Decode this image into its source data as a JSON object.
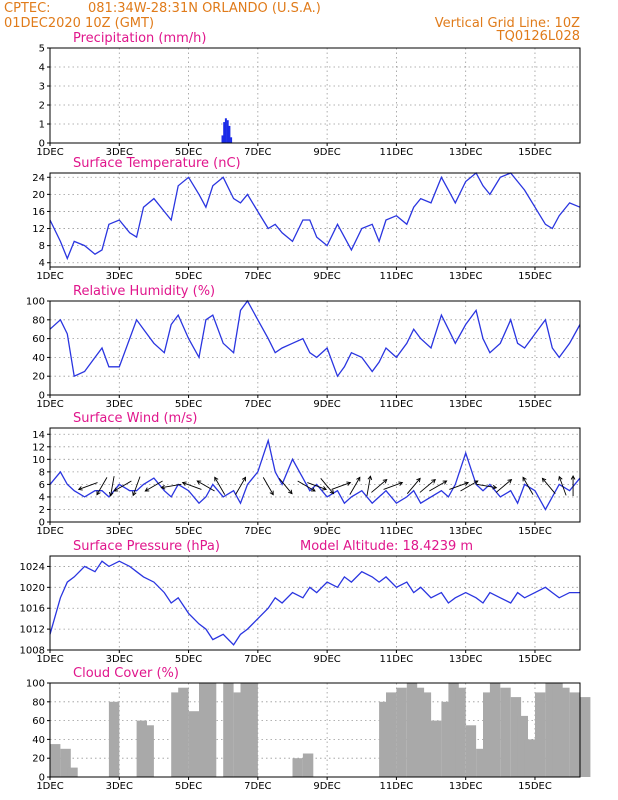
{
  "header": {
    "source": "CPTEC:",
    "location": "081:34W-28:31N   ORLANDO (U.S.A.)",
    "datetime": "01DEC2020 10Z (GMT)",
    "grid_note": "Vertical Grid Line: 10Z",
    "code": "TQ0126L028"
  },
  "colors": {
    "header": "#e07b1a",
    "panel_title": "#e0168c",
    "series": "#2a35e0",
    "precip": "#1b2be8",
    "cloud": "#a9a9a9"
  },
  "x_axis": {
    "ticks": [
      "1DEC",
      "3DEC",
      "5DEC",
      "7DEC",
      "9DEC",
      "11DEC",
      "13DEC",
      "15DEC"
    ],
    "tick_days": [
      0,
      2,
      4,
      6,
      8,
      10,
      12,
      14
    ],
    "xlim_days": [
      0,
      15.3
    ]
  },
  "chart_data": [
    {
      "type": "bar",
      "title": "Precipitation (mm/h)",
      "ylim": [
        0,
        5
      ],
      "yticks": [
        0,
        1,
        2,
        3,
        4,
        5
      ],
      "x": [
        4.95,
        5.0,
        5.05,
        5.1,
        5.15,
        5.2
      ],
      "values": [
        0.4,
        1.1,
        1.3,
        1.2,
        0.9,
        0.3
      ]
    },
    {
      "type": "line",
      "title": "Surface Temperature (nC)",
      "ylim": [
        3,
        25
      ],
      "yticks": [
        4,
        8,
        12,
        16,
        20,
        24
      ],
      "x": [
        0,
        0.3,
        0.5,
        0.7,
        1.0,
        1.3,
        1.5,
        1.7,
        2.0,
        2.3,
        2.5,
        2.7,
        3.0,
        3.3,
        3.5,
        3.7,
        4.0,
        4.3,
        4.5,
        4.7,
        5.0,
        5.3,
        5.5,
        5.7,
        6.0,
        6.3,
        6.5,
        6.7,
        7.0,
        7.3,
        7.5,
        7.7,
        8.0,
        8.3,
        8.5,
        8.7,
        9.0,
        9.3,
        9.5,
        9.7,
        10.0,
        10.3,
        10.5,
        10.7,
        11.0,
        11.3,
        11.5,
        11.7,
        12.0,
        12.3,
        12.5,
        12.7,
        13.0,
        13.3,
        13.5,
        13.7,
        14.0,
        14.3,
        14.5,
        14.7,
        15.0,
        15.3
      ],
      "values": [
        14,
        9,
        5,
        9,
        8,
        6,
        7,
        13,
        14,
        11,
        10,
        17,
        19,
        16,
        14,
        22,
        24,
        20,
        17,
        22,
        24,
        19,
        18,
        20,
        16,
        12,
        13,
        11,
        9,
        14,
        14,
        10,
        8,
        13,
        10,
        7,
        12,
        13,
        9,
        14,
        15,
        13,
        17,
        19,
        18,
        24,
        21,
        18,
        23,
        25,
        22,
        20,
        24,
        25,
        23,
        21,
        17,
        13,
        12,
        15,
        18,
        17
      ]
    },
    {
      "type": "line",
      "title": "Relative Humidity (%)",
      "ylim": [
        0,
        100
      ],
      "yticks": [
        0,
        20,
        40,
        60,
        80,
        100
      ],
      "x": [
        0,
        0.3,
        0.5,
        0.7,
        1.0,
        1.3,
        1.5,
        1.7,
        2.0,
        2.3,
        2.5,
        2.7,
        3.0,
        3.3,
        3.5,
        3.7,
        4.0,
        4.3,
        4.5,
        4.7,
        5.0,
        5.3,
        5.5,
        5.7,
        6.0,
        6.3,
        6.5,
        6.7,
        7.0,
        7.3,
        7.5,
        7.7,
        8.0,
        8.3,
        8.5,
        8.7,
        9.0,
        9.3,
        9.5,
        9.7,
        10.0,
        10.3,
        10.5,
        10.7,
        11.0,
        11.3,
        11.5,
        11.7,
        12.0,
        12.3,
        12.5,
        12.7,
        13.0,
        13.3,
        13.5,
        13.7,
        14.0,
        14.3,
        14.5,
        14.7,
        15.0,
        15.3
      ],
      "values": [
        70,
        80,
        65,
        20,
        25,
        40,
        50,
        30,
        30,
        60,
        80,
        70,
        55,
        45,
        75,
        85,
        60,
        40,
        80,
        85,
        55,
        45,
        90,
        100,
        80,
        60,
        45,
        50,
        55,
        60,
        45,
        40,
        50,
        20,
        30,
        45,
        40,
        25,
        35,
        50,
        40,
        55,
        70,
        60,
        50,
        85,
        70,
        55,
        75,
        90,
        60,
        45,
        55,
        80,
        55,
        50,
        65,
        80,
        50,
        40,
        55,
        75
      ]
    },
    {
      "type": "line",
      "title": "Surface Wind (m/s)",
      "ylim": [
        0,
        15
      ],
      "yticks": [
        0,
        2,
        4,
        6,
        8,
        10,
        12,
        14
      ],
      "x": [
        0,
        0.3,
        0.5,
        0.7,
        1.0,
        1.3,
        1.5,
        1.7,
        2.0,
        2.3,
        2.5,
        2.7,
        3.0,
        3.3,
        3.5,
        3.7,
        4.0,
        4.3,
        4.5,
        4.7,
        5.0,
        5.3,
        5.5,
        5.7,
        6.0,
        6.3,
        6.5,
        6.7,
        7.0,
        7.3,
        7.5,
        7.7,
        8.0,
        8.3,
        8.5,
        8.7,
        9.0,
        9.3,
        9.5,
        9.7,
        10.0,
        10.3,
        10.5,
        10.7,
        11.0,
        11.3,
        11.5,
        11.7,
        12.0,
        12.3,
        12.5,
        12.7,
        13.0,
        13.3,
        13.5,
        13.7,
        14.0,
        14.3,
        14.5,
        14.7,
        15.0,
        15.3
      ],
      "values": [
        6,
        8,
        6,
        5,
        4,
        5,
        5,
        4,
        6,
        5,
        5,
        6,
        7,
        5,
        4,
        6,
        5,
        3,
        4,
        6,
        4,
        5,
        3,
        6,
        8,
        13,
        8,
        6,
        10,
        7,
        5,
        6,
        4,
        5,
        3,
        4,
        5,
        3,
        4,
        5,
        3,
        4,
        5,
        3,
        4,
        5,
        4,
        6,
        11,
        6,
        5,
        6,
        4,
        5,
        3,
        6,
        5,
        2,
        4,
        6,
        5,
        7
      ]
    },
    {
      "type": "line",
      "title": "Surface Pressure (hPa)",
      "ylim": [
        1008,
        1026
      ],
      "yticks": [
        1008,
        1012,
        1016,
        1020,
        1024
      ],
      "x": [
        0,
        0.3,
        0.5,
        0.7,
        1.0,
        1.3,
        1.5,
        1.7,
        2.0,
        2.3,
        2.5,
        2.7,
        3.0,
        3.3,
        3.5,
        3.7,
        4.0,
        4.3,
        4.5,
        4.7,
        5.0,
        5.3,
        5.5,
        5.7,
        6.0,
        6.3,
        6.5,
        6.7,
        7.0,
        7.3,
        7.5,
        7.7,
        8.0,
        8.3,
        8.5,
        8.7,
        9.0,
        9.3,
        9.5,
        9.7,
        10.0,
        10.3,
        10.5,
        10.7,
        11.0,
        11.3,
        11.5,
        11.7,
        12.0,
        12.3,
        12.5,
        12.7,
        13.0,
        13.3,
        13.5,
        13.7,
        14.0,
        14.3,
        14.5,
        14.7,
        15.0,
        15.3
      ],
      "values": [
        1011,
        1018,
        1021,
        1022,
        1024,
        1023,
        1025,
        1024,
        1025,
        1024,
        1023,
        1022,
        1021,
        1019,
        1017,
        1018,
        1015,
        1013,
        1012,
        1010,
        1011,
        1009,
        1011,
        1012,
        1014,
        1016,
        1018,
        1017,
        1019,
        1018,
        1020,
        1019,
        1021,
        1020,
        1022,
        1021,
        1023,
        1022,
        1021,
        1022,
        1020,
        1021,
        1019,
        1020,
        1018,
        1019,
        1017,
        1018,
        1019,
        1018,
        1017,
        1019,
        1018,
        1017,
        1019,
        1018,
        1019,
        1020,
        1019,
        1018,
        1019,
        1019
      ]
    },
    {
      "type": "area",
      "title": "Cloud Cover (%)",
      "ylim": [
        0,
        100
      ],
      "yticks": [
        0,
        20,
        40,
        60,
        80,
        100
      ],
      "x": [
        0,
        0.3,
        0.5,
        0.7,
        1.0,
        1.3,
        1.5,
        1.7,
        2.0,
        2.3,
        2.5,
        2.7,
        3.0,
        3.3,
        3.5,
        3.7,
        4.0,
        4.3,
        4.5,
        4.7,
        5.0,
        5.3,
        5.5,
        5.7,
        6.0,
        6.3,
        6.5,
        6.7,
        7.0,
        7.3,
        7.5,
        7.7,
        8.0,
        8.3,
        8.5,
        8.7,
        9.0,
        9.3,
        9.5,
        9.7,
        10.0,
        10.3,
        10.5,
        10.7,
        11.0,
        11.3,
        11.5,
        11.7,
        12.0,
        12.3,
        12.5,
        12.7,
        13.0,
        13.3,
        13.5,
        13.7,
        14.0,
        14.3,
        14.5,
        14.7,
        15.0,
        15.3
      ],
      "values": [
        35,
        30,
        10,
        0,
        0,
        0,
        0,
        80,
        0,
        0,
        60,
        55,
        0,
        0,
        90,
        95,
        70,
        100,
        100,
        0,
        100,
        90,
        100,
        100,
        0,
        0,
        0,
        0,
        20,
        25,
        0,
        0,
        0,
        0,
        0,
        0,
        0,
        0,
        80,
        90,
        95,
        100,
        95,
        90,
        60,
        80,
        100,
        95,
        55,
        30,
        90,
        100,
        95,
        85,
        65,
        40,
        90,
        100,
        100,
        95,
        90,
        85
      ]
    }
  ],
  "panels": {
    "pressure_extra": "Model Altitude: 18.4239  m"
  },
  "wind_arrows": {
    "x_days": [
      1.1,
      1.5,
      1.8,
      2.1,
      2.5,
      3.0,
      3.5,
      4.1,
      4.5,
      4.9,
      5.5,
      6.3,
      6.8,
      7.4,
      7.7,
      8.0,
      8.4,
      8.8,
      9.2,
      9.5,
      9.9,
      10.5,
      10.9,
      11.2,
      11.8,
      12.1,
      12.6,
      13.1,
      13.8,
      14.4,
      14.8,
      15.1
    ],
    "dir_deg": [
      200,
      240,
      260,
      210,
      250,
      210,
      190,
      160,
      150,
      120,
      60,
      300,
      310,
      330,
      340,
      310,
      20,
      60,
      80,
      40,
      20,
      50,
      40,
      30,
      20,
      30,
      350,
      40,
      120,
      130,
      110,
      90
    ]
  }
}
